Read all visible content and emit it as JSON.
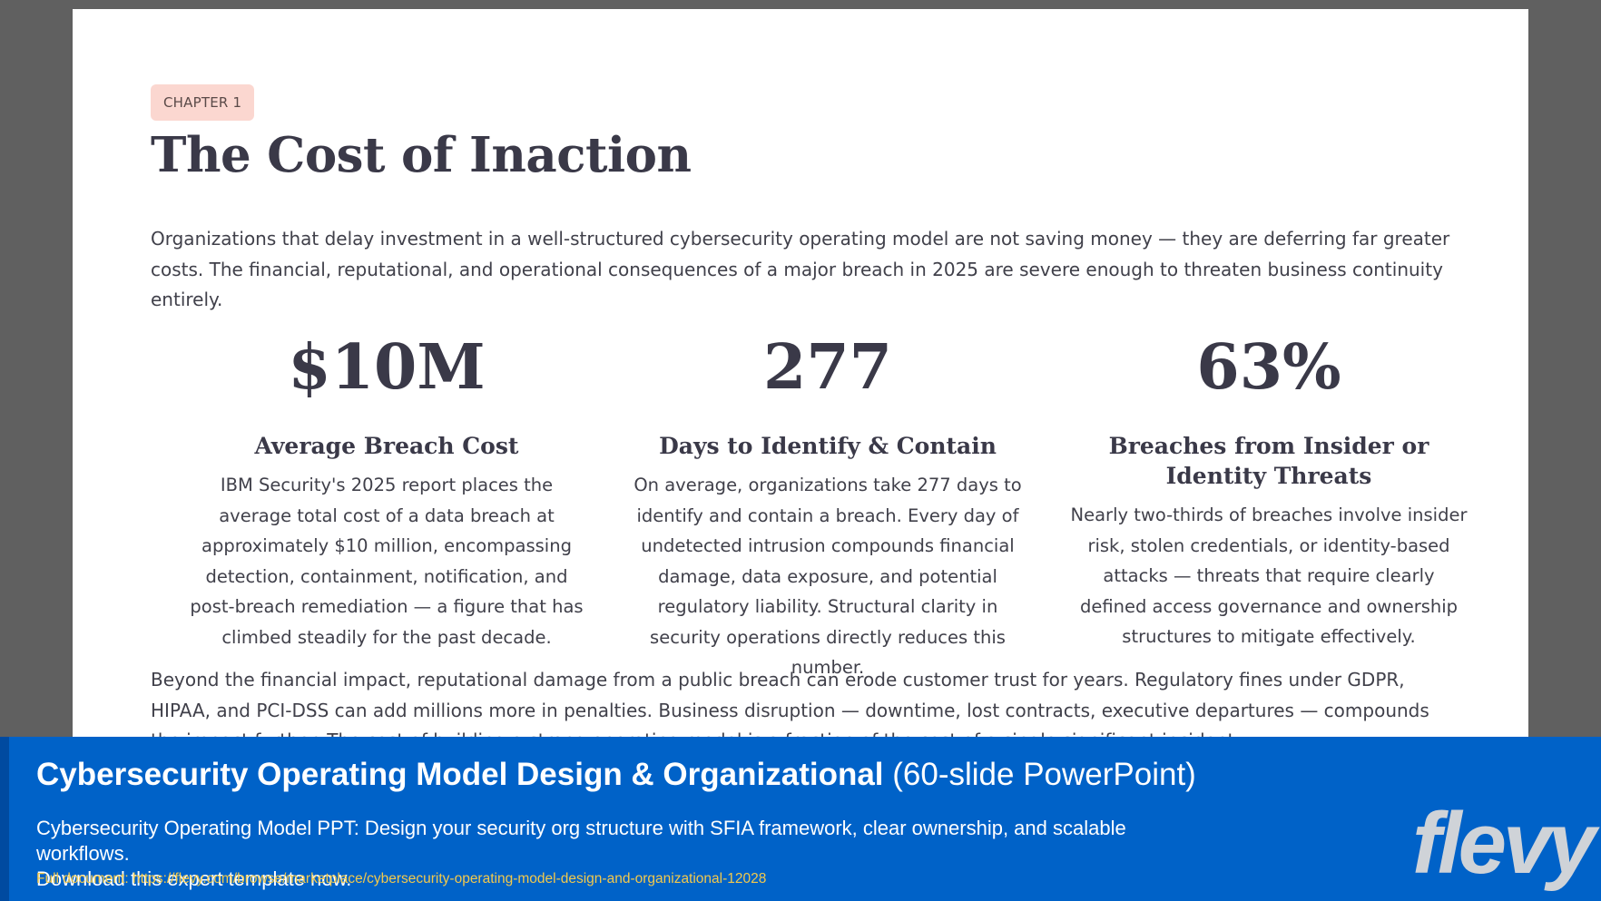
{
  "document": {
    "chapter_label": "CHAPTER 1",
    "title": "The Cost of Inaction",
    "intro": "Organizations that delay investment in a well-structured cybersecurity operating model are not saving money — they are deferring far greater costs. The financial, reputational, and operational consequences of a major breach in 2025 are severe enough to threaten business continuity entirely.",
    "stats": [
      {
        "value": "$10M",
        "label": "Average Breach Cost",
        "description": "IBM Security's 2025 report places the average total cost of a data breach at approximately $10 million, encompassing detection, containment, notification, and post-breach remediation — a figure that has climbed steadily for the past decade."
      },
      {
        "value": "277",
        "label": "Days to Identify & Contain",
        "description": "On average, organizations take 277 days to identify and contain a breach. Every day of undetected intrusion compounds financial damage, data exposure, and potential regulatory liability. Structural clarity in security operations directly reduces this number."
      },
      {
        "value": "63%",
        "label": "Breaches from Insider or Identity Threats",
        "description": "Nearly two-thirds of breaches involve insider risk, stolen credentials, or identity-based attacks — threats that require clearly defined access governance and ownership structures to mitigate effectively."
      }
    ],
    "outro": "Beyond the financial impact, reputational damage from a public breach can erode customer trust for years. Regulatory fines under GDPR, HIPAA, and PCI-DSS can add millions more in penalties. Business disruption — downtime, lost contracts, executive departures — compounds the impact further. The cost of building a strong operating model is a fraction of the cost of a single significant incident."
  },
  "banner": {
    "title_bold": "Cybersecurity Operating Model Design & Organizational",
    "title_light": " (60-slide PowerPoint)",
    "description_line1": "Cybersecurity Operating Model PPT: Design your security org structure with SFIA framework, clear ownership, and scalable workflows.",
    "description_line2": "Download this expert template now.",
    "link_text": "Full document: https://flevy.com/browse/marketplace/cybersecurity-operating-model-design-and-organizational-12028",
    "logo_text": "flevy"
  },
  "colors": {
    "background": "#606060",
    "page": "#ffffff",
    "heading": "#3a3948",
    "body_text": "#40404a",
    "chip": "#fbd7d0",
    "banner": "#0062c8",
    "link": "#f2c94c",
    "logo": "#cfd3d8"
  }
}
